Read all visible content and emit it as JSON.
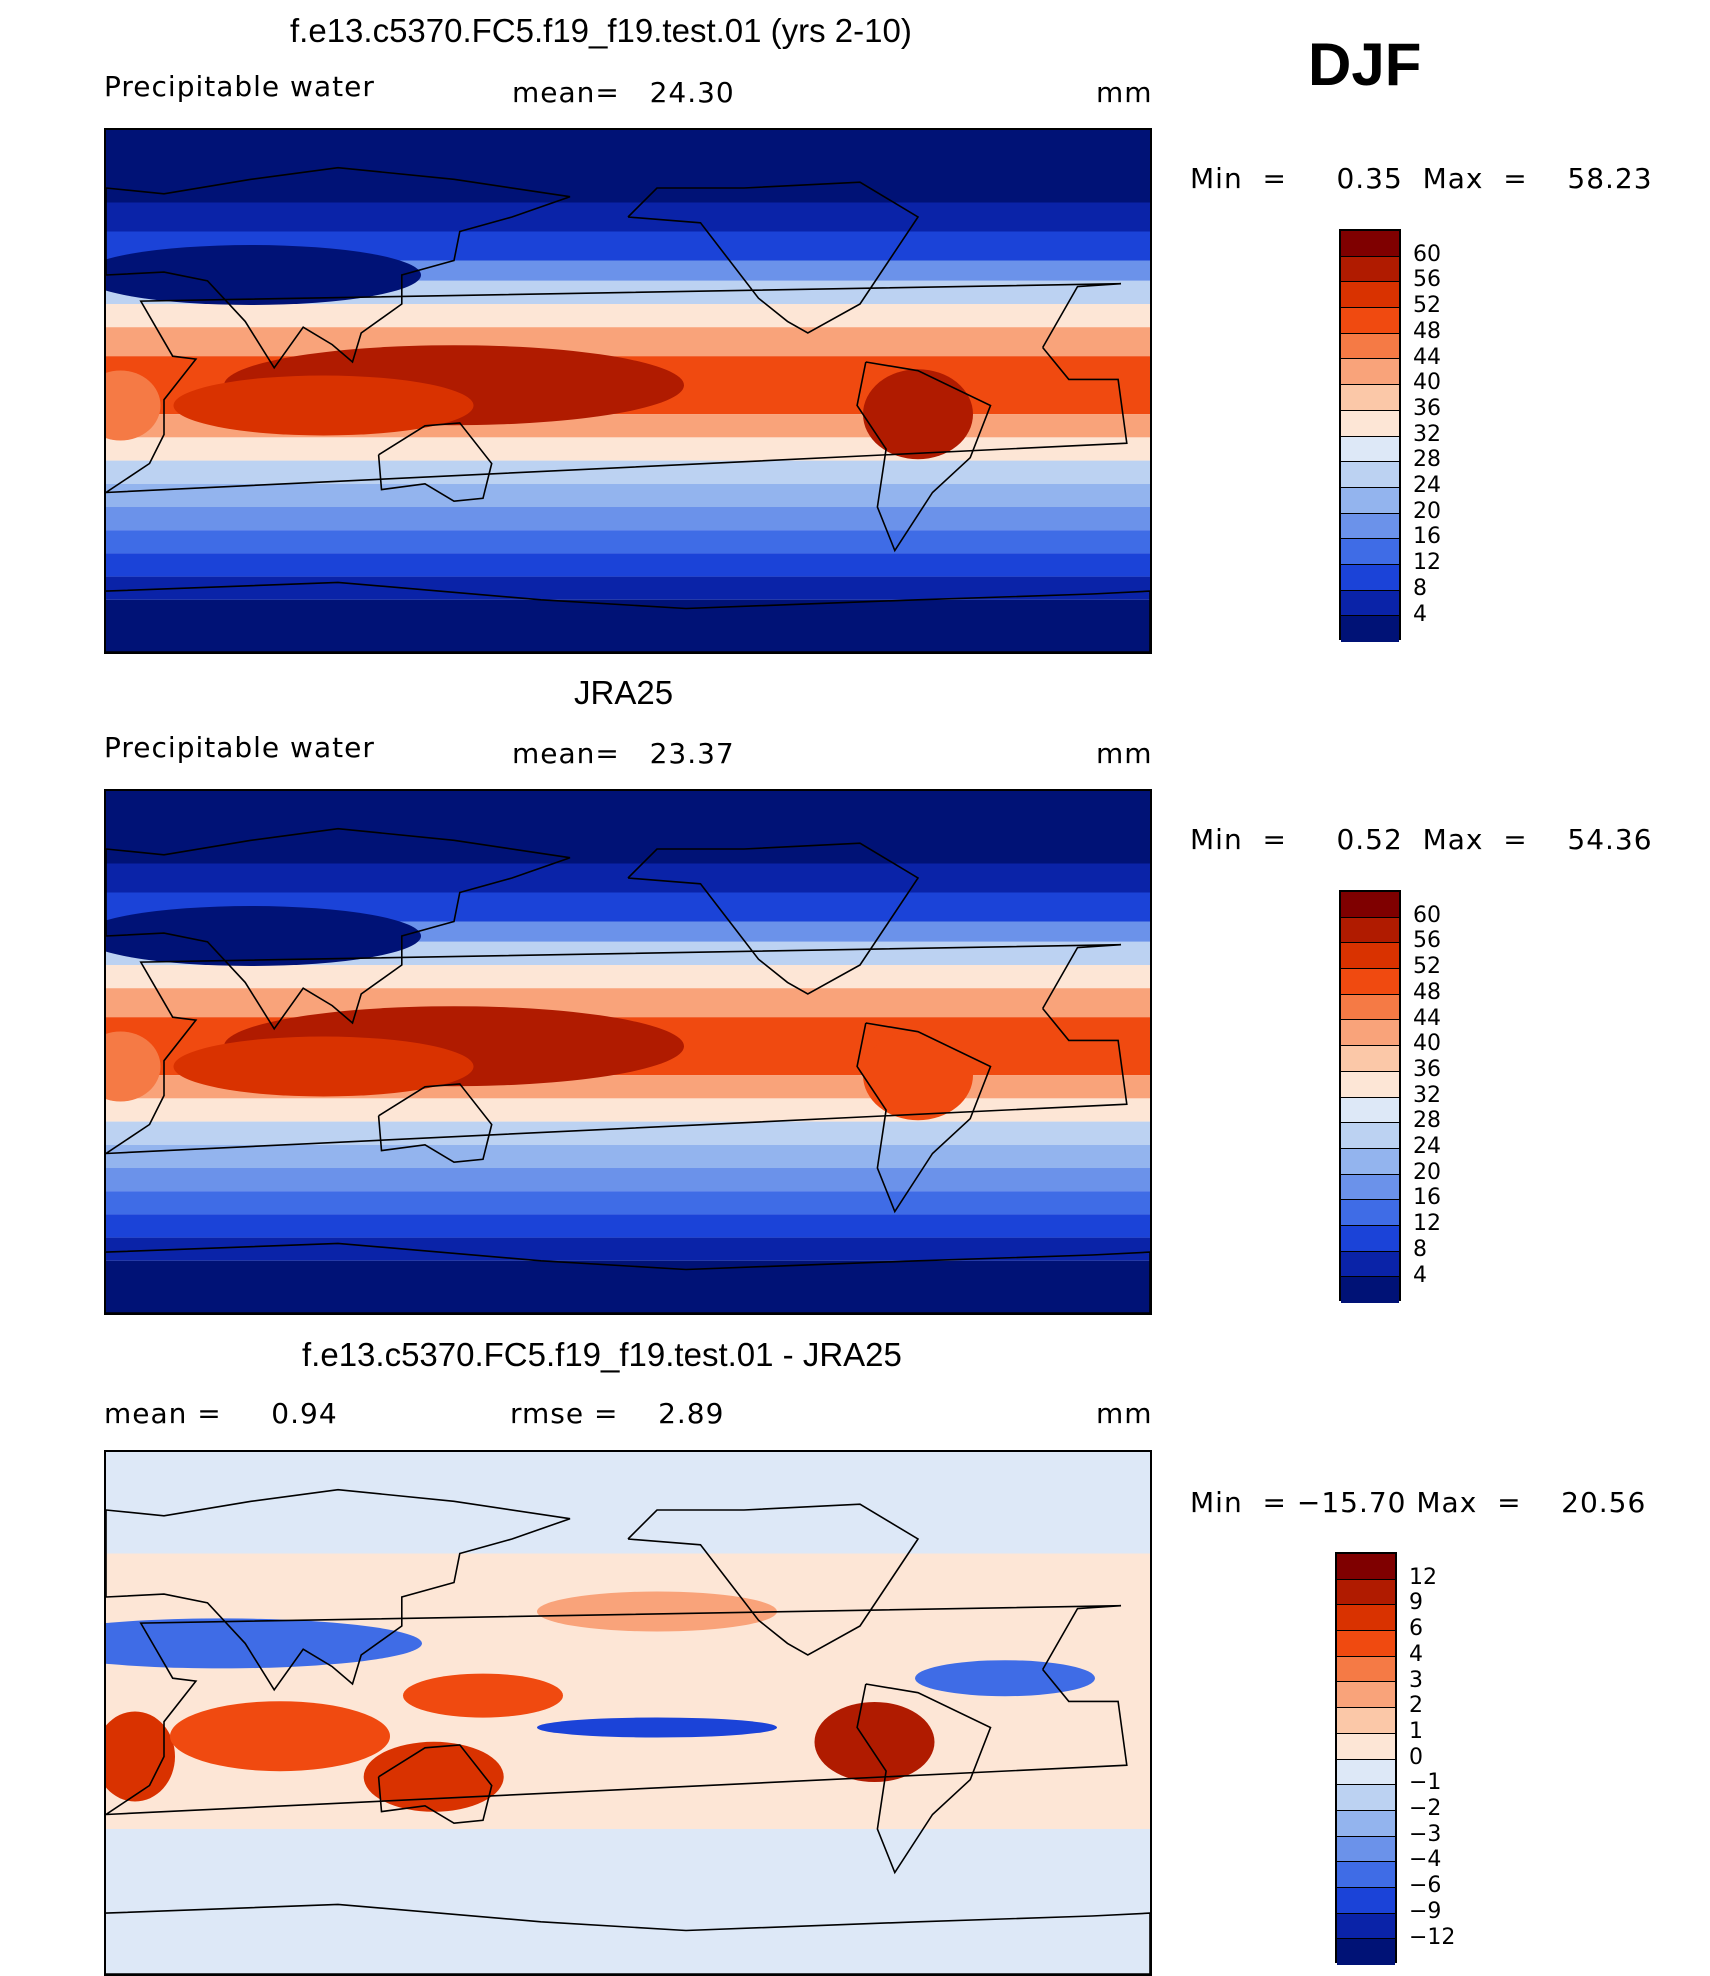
{
  "season": "DJF",
  "panels": [
    {
      "title": "f.e13.c5370.FC5.f19_f19.test.01 (yrs 2-10)",
      "left_label": "Precipitable water",
      "mid_label": "mean=",
      "mid_value": "24.30",
      "extra_label": "",
      "extra_value": "",
      "units": "mm",
      "min_label": "Min",
      "min_value": "0.35",
      "max_label": "Max",
      "max_value": "58.23",
      "field": "model"
    },
    {
      "title": "JRA25",
      "left_label": "Precipitable water",
      "mid_label": "mean=",
      "mid_value": "23.37",
      "extra_label": "",
      "extra_value": "",
      "units": "mm",
      "min_label": "Min",
      "min_value": "0.52",
      "max_label": "Max",
      "max_value": "54.36",
      "field": "obs"
    },
    {
      "title": "f.e13.c5370.FC5.f19_f19.test.01 - JRA25",
      "left_label": "mean =",
      "left_value": "0.94",
      "mid_label": "rmse =",
      "mid_value": "2.89",
      "units": "mm",
      "min_label": "Min",
      "min_value": "−15.70",
      "max_label": "Max",
      "max_value": "20.56",
      "field": "diff"
    }
  ],
  "colorbars": {
    "pw": {
      "labels": [
        "60",
        "56",
        "52",
        "48",
        "44",
        "40",
        "36",
        "32",
        "28",
        "24",
        "20",
        "16",
        "12",
        "8",
        "4"
      ],
      "colors": [
        "#7f0000",
        "#b01b00",
        "#d93200",
        "#f04a10",
        "#f57a45",
        "#f9a37a",
        "#fbc8a8",
        "#fde6d6",
        "#dde8f7",
        "#bcd2f2",
        "#93b4ee",
        "#6b92ea",
        "#3f6ce6",
        "#1b43d8",
        "#0a23a8",
        "#001276"
      ]
    },
    "diff": {
      "labels": [
        "12",
        "9",
        "6",
        "4",
        "3",
        "2",
        "1",
        "0",
        "−1",
        "−2",
        "−3",
        "−4",
        "−6",
        "−9",
        "−12"
      ],
      "colors": [
        "#7f0000",
        "#b01b00",
        "#d93200",
        "#f04a10",
        "#f57a45",
        "#f9a37a",
        "#fbc8a8",
        "#fde6d6",
        "#dde8f7",
        "#bcd2f2",
        "#93b4ee",
        "#6b92ea",
        "#3f6ce6",
        "#1b43d8",
        "#0a23a8",
        "#001276"
      ]
    }
  }
}
